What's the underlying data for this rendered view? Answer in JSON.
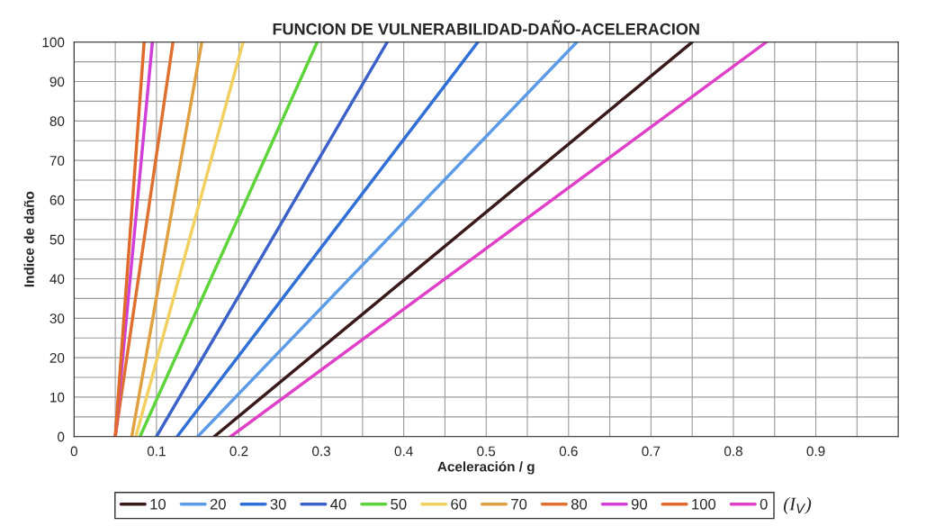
{
  "chart_data": {
    "type": "line",
    "title": "FUNCION DE VULNERABILIDAD-DAÑO-ACELERACION",
    "xlabel": "Aceleración / g",
    "ylabel": "Indice de daño",
    "legend_title": "(I$_{V}$)",
    "legend": "bottom",
    "grid": true,
    "marker": "none",
    "line_style": "solid",
    "xlim": [
      0,
      1
    ],
    "ylim": [
      0,
      100
    ],
    "xticks": [
      0,
      {
        "value": 0.05,
        "label": null
      },
      0.1,
      {
        "value": 0.15,
        "label": null
      },
      0.2,
      {
        "value": 0.25,
        "label": null
      },
      0.3,
      {
        "value": 0.35,
        "label": null
      },
      0.4,
      {
        "value": 0.45,
        "label": null
      },
      0.5,
      {
        "value": 0.55,
        "label": null
      },
      0.6,
      {
        "value": 0.65,
        "label": null
      },
      0.7,
      {
        "value": 0.75,
        "label": null
      },
      0.8,
      {
        "value": 0.85,
        "label": null
      },
      0.9,
      {
        "value": 0.95,
        "label": null
      }
    ],
    "yticks": [
      0,
      {
        "value": 5,
        "label": null
      },
      10,
      {
        "value": 15,
        "label": null
      },
      20,
      {
        "value": 25,
        "label": null
      },
      30,
      {
        "value": 35,
        "label": null
      },
      40,
      {
        "value": 45,
        "label": null
      },
      50,
      {
        "value": 55,
        "label": null
      },
      60,
      {
        "value": 65,
        "label": null
      },
      70,
      {
        "value": 75,
        "label": null
      },
      80,
      {
        "value": 85,
        "label": null
      },
      90,
      {
        "value": 95,
        "label": null
      },
      100
    ],
    "series": [
      {
        "name": "10",
        "color": "#3a1a1a",
        "x": [
          0.17,
          0.75
        ],
        "values": [
          0,
          100
        ]
      },
      {
        "name": "20",
        "color": "#5b9be8",
        "x": [
          0.15,
          0.61
        ],
        "values": [
          0,
          100
        ]
      },
      {
        "name": "30",
        "color": "#2f6fd6",
        "x": [
          0.125,
          0.49
        ],
        "values": [
          0,
          100
        ]
      },
      {
        "name": "40",
        "color": "#3a62c8",
        "x": [
          0.1,
          0.38
        ],
        "values": [
          0,
          100
        ]
      },
      {
        "name": "50",
        "color": "#5cd43a",
        "x": [
          0.08,
          0.295
        ],
        "values": [
          0,
          100
        ]
      },
      {
        "name": "60",
        "color": "#f2d060",
        "x": [
          0.075,
          0.205
        ],
        "values": [
          0,
          100
        ]
      },
      {
        "name": "70",
        "color": "#e0a040",
        "x": [
          0.07,
          0.155
        ],
        "values": [
          0,
          100
        ]
      },
      {
        "name": "80",
        "color": "#e07030",
        "x": [
          0.05,
          0.12
        ],
        "values": [
          0,
          100
        ]
      },
      {
        "name": "90",
        "color": "#d040d8",
        "x": [
          0.05,
          0.095
        ],
        "values": [
          0,
          100
        ]
      },
      {
        "name": "100",
        "color": "#e06a2a",
        "x": [
          0.05,
          0.085
        ],
        "values": [
          0,
          100
        ]
      },
      {
        "name": "0",
        "color": "#e040c8",
        "x": [
          0.19,
          0.84
        ],
        "values": [
          0,
          100
        ]
      }
    ]
  }
}
